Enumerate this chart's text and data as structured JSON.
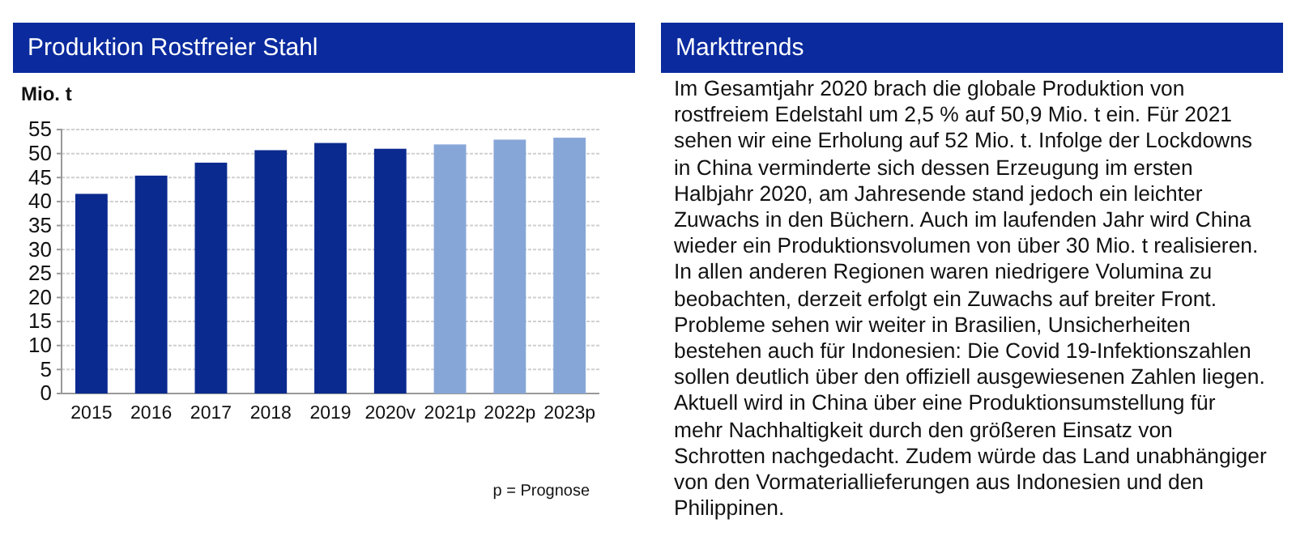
{
  "chart_data": [
    {
      "type": "bar",
      "title": "Produktion Rostfreier Stahl",
      "ylabel": "Mio. t",
      "categories": [
        "2015",
        "2016",
        "2017",
        "2018",
        "2019",
        "2020v",
        "2021p",
        "2022p",
        "2023p"
      ],
      "values": [
        41.6,
        45.4,
        48.1,
        50.7,
        52.2,
        51.0,
        51.9,
        52.9,
        53.3
      ],
      "colors": [
        "#0b2a8f",
        "#0b2a8f",
        "#0b2a8f",
        "#0b2a8f",
        "#0b2a8f",
        "#0b2a8f",
        "#87a6d8",
        "#87a6d8",
        "#87a6d8"
      ],
      "ylim": [
        0,
        55
      ],
      "yticks": [
        0,
        5,
        10,
        15,
        20,
        25,
        30,
        35,
        40,
        45,
        50,
        55
      ],
      "grid": "y",
      "annotations": [
        "p = Prognose"
      ]
    },
    {
      "type": "other",
      "title": "Markttrends",
      "annotations": [
        "Im Gesamtjahr 2020 brach die globale Produktion von rostfreiem Edelstahl um 2,5 % auf 50,9 Mio. t ein. Für 2021 sehen wir eine Erholung auf 52 Mio. t. Infolge der Lockdowns in China verminderte sich dessen Erzeugung im ersten Halbjahr 2020, am Jahresende stand jedoch ein leichter Zuwachs in den Büchern. Auch im laufenden Jahr wird China wieder ein Produktionsvolumen von über 30 Mio. t realisieren. In allen anderen Regionen waren niedrigere Volumina zu beobachten, derzeit erfolgt ein Zuwachs auf breiter Front. Probleme sehen wir weiter in Brasilien, Unsicherheiten bestehen auch für Indonesien: Die Covid 19-Infektionszahlen sollen deutlich über den offiziell ausgewiesenen Zahlen liegen. Aktuell wird in China über eine Produktionsumstellung für mehr Nachhaltigkeit durch den größeren Einsatz von Schrotten nachgedacht. Zudem würde das Land unabhängiger von den Vormateriallieferungen aus Indonesien und den Philippinen."
      ]
    }
  ]
}
